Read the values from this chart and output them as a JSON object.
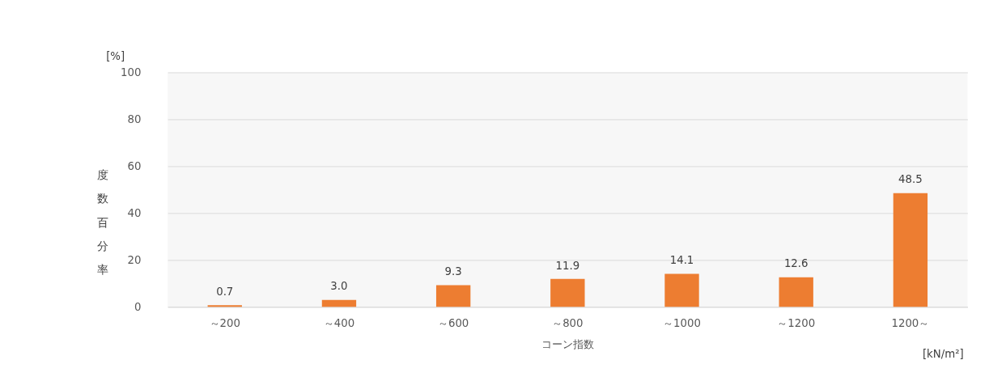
{
  "chart_data": {
    "type": "bar",
    "categories": [
      "～200",
      "～400",
      "～600",
      "～800",
      "～1000",
      "～1200",
      "1200～"
    ],
    "values": [
      0.7,
      3.0,
      9.3,
      11.9,
      14.1,
      12.6,
      48.5
    ],
    "value_labels": [
      "0.7",
      "3.0",
      "9.3",
      "11.9",
      "14.1",
      "12.6",
      "48.5"
    ],
    "color": "#ed7d31",
    "xlabel": "コーン指数",
    "ylabel": "度数百分率",
    "annotations": [
      "[%]",
      "[kN/m²]"
    ],
    "ylim": [
      0,
      100
    ],
    "yticks": [
      0,
      20,
      40,
      60,
      80,
      100
    ],
    "grid": "y"
  }
}
